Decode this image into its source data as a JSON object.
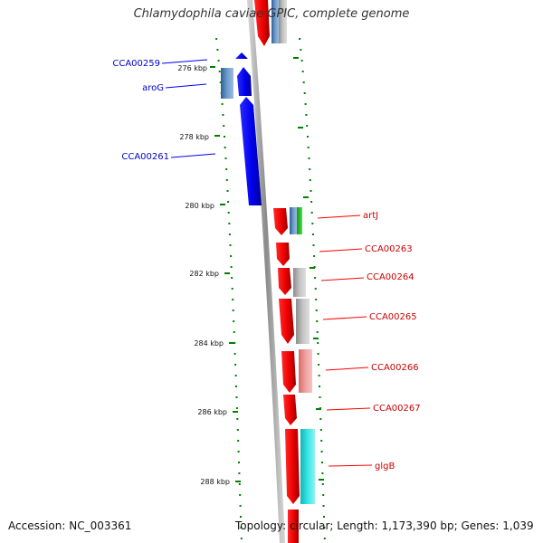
{
  "title": "Chlamydophila caviae GPIC, complete genome",
  "footer": {
    "accession": "Accession: NC_003361",
    "topology": "Topology: circular; Length: 1,173,390 bp; Genes: 1,039"
  },
  "colors": {
    "reverse_strand": "#0000ff",
    "forward_strand": "#ff0000",
    "backbone": "#888888",
    "tick": "#008000"
  },
  "scale_labels": [
    "276 kbp",
    "278 kbp",
    "280 kbp",
    "282 kbp",
    "284 kbp",
    "286 kbp",
    "288 kbp"
  ],
  "genes_reverse": [
    "CCA00259",
    "aroG",
    "CCA00261"
  ],
  "genes_forward": [
    "artJ",
    "CCA00263",
    "CCA00264",
    "CCA00265",
    "CCA00266",
    "CCA00267",
    "glgB"
  ]
}
